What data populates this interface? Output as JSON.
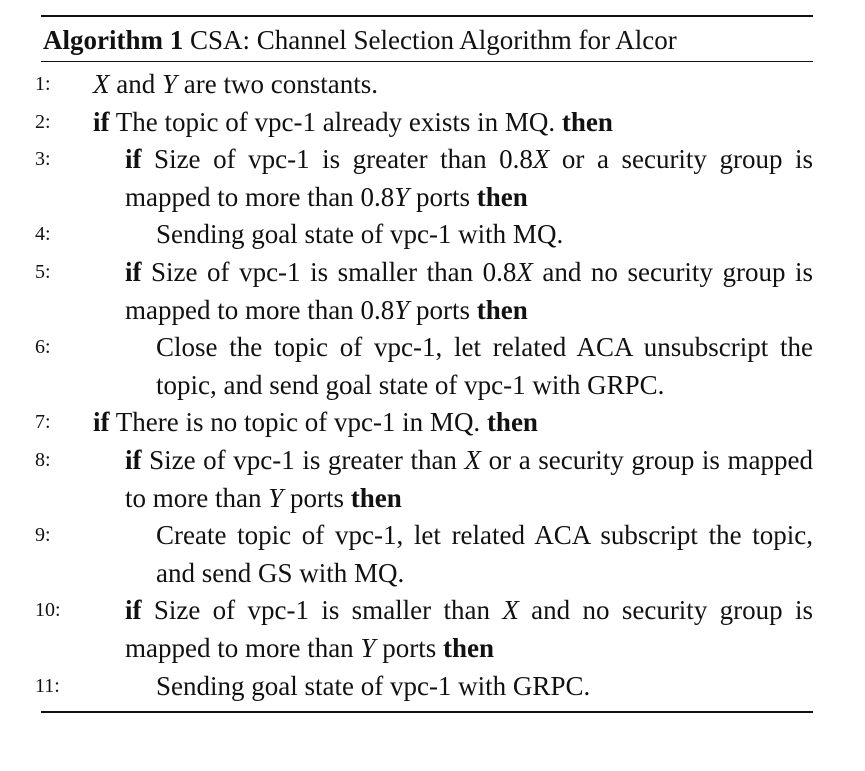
{
  "algorithm": {
    "label": "Algorithm 1",
    "title": "CSA: Channel Selection Algorithm for Alcor"
  },
  "keywords": {
    "if": "if",
    "then": "then"
  },
  "lines": [
    {
      "num": "1:",
      "pre": "",
      "math1": "X",
      "mid": " and ",
      "math2": "Y",
      "post": " are two constants."
    },
    {
      "num": "2:",
      "text": "The topic of vpc-1 already exists in MQ."
    },
    {
      "num": "3:",
      "text_a": "Size of vpc-1 is greater than ",
      "coef1": "0.8",
      "var1": "X",
      "text_b": " or a security group is mapped to more than ",
      "coef2": "0.8",
      "var2": "Y",
      "text_c": " ports"
    },
    {
      "num": "4:",
      "text": "Sending goal state of vpc-1 with MQ."
    },
    {
      "num": "5:",
      "text_a": "Size of vpc-1 is smaller than ",
      "coef1": "0.8",
      "var1": "X",
      "text_b": " and no security group is mapped to more than ",
      "coef2": "0.8",
      "var2": "Y",
      "text_c": " ports"
    },
    {
      "num": "6:",
      "text": "Close the topic of vpc-1, let related ACA unsubscript the topic, and send goal state of vpc-1 with GRPC."
    },
    {
      "num": "7:",
      "text": "There is no topic of vpc-1 in MQ."
    },
    {
      "num": "8:",
      "text_a": "Size of vpc-1 is greater than ",
      "var1": "X",
      "text_b": " or a security group is mapped to more than ",
      "var2": "Y",
      "text_c": " ports"
    },
    {
      "num": "9:",
      "text": "Create topic of vpc-1, let related ACA subscript the topic, and send GS with MQ."
    },
    {
      "num": "10:",
      "text_a": "Size of vpc-1 is smaller than ",
      "var1": "X",
      "text_b": " and no security group is mapped to more than ",
      "var2": "Y",
      "text_c": " ports"
    },
    {
      "num": "11:",
      "text": "Sending goal state of vpc-1 with GRPC."
    }
  ]
}
